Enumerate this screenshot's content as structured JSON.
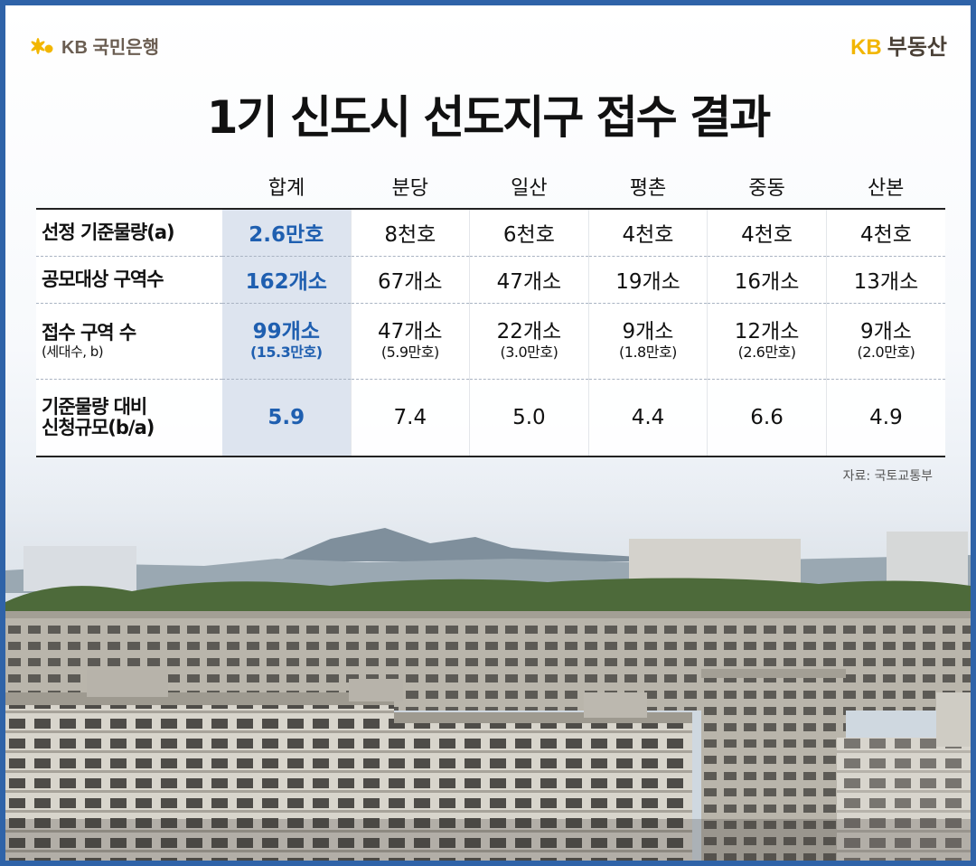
{
  "header": {
    "bank_brand": "KB 국민은행",
    "realty_kb": "KB",
    "realty_name": "부동산"
  },
  "title": "1기 신도시 선도지구 접수 결과",
  "table": {
    "columns": [
      "합계",
      "분당",
      "일산",
      "평촌",
      "중동",
      "산본"
    ],
    "rows": [
      {
        "label": "선정 기준물량(a)",
        "values": [
          "2.6만호",
          "8천호",
          "6천호",
          "4천호",
          "4천호",
          "4천호"
        ]
      },
      {
        "label": "공모대상 구역수",
        "values": [
          "162개소",
          "67개소",
          "47개소",
          "19개소",
          "16개소",
          "13개소"
        ]
      },
      {
        "label": "접수 구역 수",
        "label_sub": "(세대수, b)",
        "values": [
          "99개소",
          "47개소",
          "22개소",
          "9개소",
          "12개소",
          "9개소"
        ],
        "subvalues": [
          "(15.3만호)",
          "(5.9만호)",
          "(3.0만호)",
          "(1.8만호)",
          "(2.6만호)",
          "(2.0만호)"
        ]
      },
      {
        "label": "기준물량 대비",
        "label_line2": "신청규모(b/a)",
        "values": [
          "5.9",
          "7.4",
          "5.0",
          "4.4",
          "6.6",
          "4.9"
        ]
      }
    ]
  },
  "source": "자료: 국토교통부",
  "colors": {
    "frame": "#2f63a8",
    "total_highlight_bg": "#dde4ef",
    "total_text": "#1f5fb0",
    "kb_yellow": "#f2b600"
  }
}
